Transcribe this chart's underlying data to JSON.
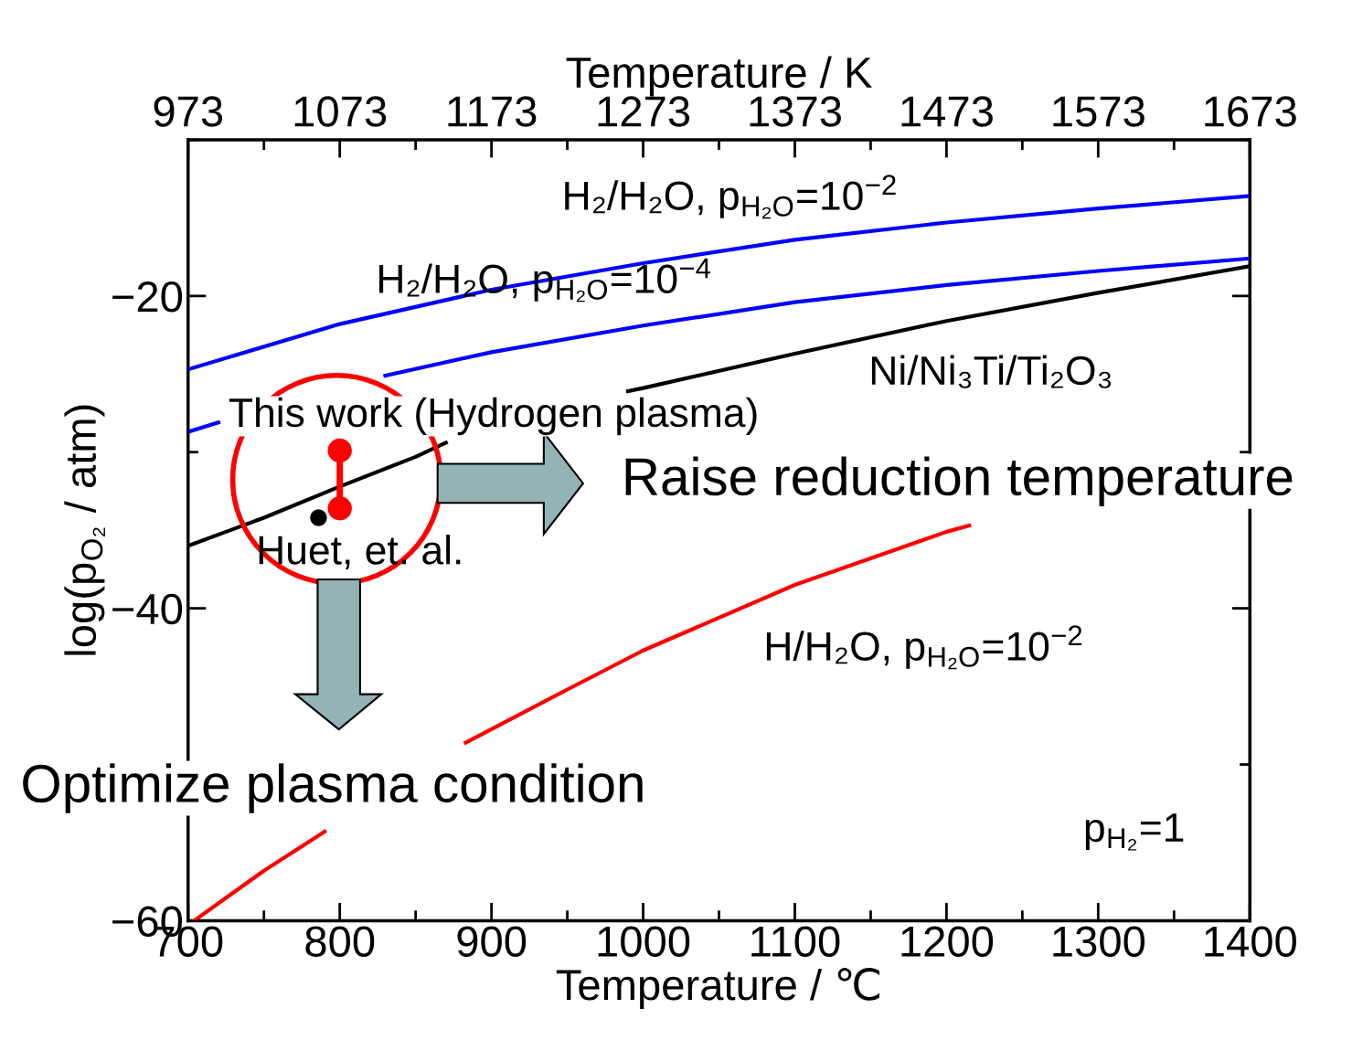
{
  "chart_data": {
    "type": "line",
    "xlabel": "Temperature / ℃",
    "ylabel": "log(p$_{O₂}$ / atm)",
    "x2label": "Temperature / K",
    "xlim": [
      700,
      1400
    ],
    "xticks": [
      700,
      800,
      900,
      1000,
      1100,
      1200,
      1300,
      1400
    ],
    "x2lim": [
      973,
      1673
    ],
    "x2ticks": [
      973,
      1073,
      1173,
      1273,
      1373,
      1473,
      1573,
      1673
    ],
    "ylim": [
      -60,
      -10
    ],
    "yticks": [
      {
        "value": -60,
        "label": "−60"
      },
      {
        "value": -40,
        "label": "−40"
      },
      {
        "value": -20,
        "label": "−20"
      }
    ],
    "grid": false,
    "line_style": "solid",
    "series": [
      {
        "color": "#0000ff",
        "x": [
          700,
          800,
          900,
          1000,
          1100,
          1200,
          1300,
          1400
        ],
        "values": [
          -24.7,
          -21.8,
          -19.6,
          -17.9,
          -16.4,
          -15.3,
          -14.4,
          -13.6
        ]
      },
      {
        "color": "#0000ff",
        "x": [
          700,
          720,
          780,
          830,
          900,
          1000,
          1100,
          1200,
          1300,
          1400
        ],
        "values": [
          -28.7,
          -28.1,
          null,
          -25.1,
          -23.6,
          -21.9,
          -20.4,
          -19.3,
          -18.4,
          -17.6
        ]
      },
      {
        "color": "#000000",
        "x": [
          700,
          750,
          800,
          850,
          870,
          930,
          990,
          1000,
          1100,
          1200,
          1300,
          1400
        ],
        "values": [
          -36.0,
          -34.2,
          -32.2,
          -30.3,
          -29.4,
          null,
          -26.1,
          -25.9,
          -23.7,
          -21.6,
          -19.8,
          -18.1
        ]
      },
      {
        "color": "#ff0000",
        "x": [
          704,
          750,
          790,
          835,
          883,
          950,
          1000,
          1100,
          1200,
          1215
        ],
        "values": [
          -60.0,
          -56.8,
          -54.3,
          null,
          -48.6,
          -45.2,
          -42.7,
          -38.5,
          -35.1,
          -34.7
        ]
      },
      {
        "name": "This work (Hydrogen plasma)",
        "color": "#ff0000",
        "marker": "circle",
        "x": [
          800,
          800
        ],
        "values": [
          -29.9,
          -33.6
        ]
      },
      {
        "name": "Huet, et. al.",
        "type": "scatter",
        "color": "#000000",
        "marker": "circle",
        "x": [
          786
        ],
        "values": [
          -34.2
        ]
      }
    ],
    "annotations": [
      "H₂/H₂O, p$_{H₂O}$=10$^{−2}$",
      "H₂/H₂O, p$_{H₂O}$=10$^{−4}$",
      "Ni/Ni₃Ti/Ti₂O₃",
      "H/H₂O, p$_{H₂O}$=10$^{−2}$",
      "Raise reduction temperature",
      "Optimize plasma condition",
      "p$_{H₂}$=1"
    ]
  }
}
